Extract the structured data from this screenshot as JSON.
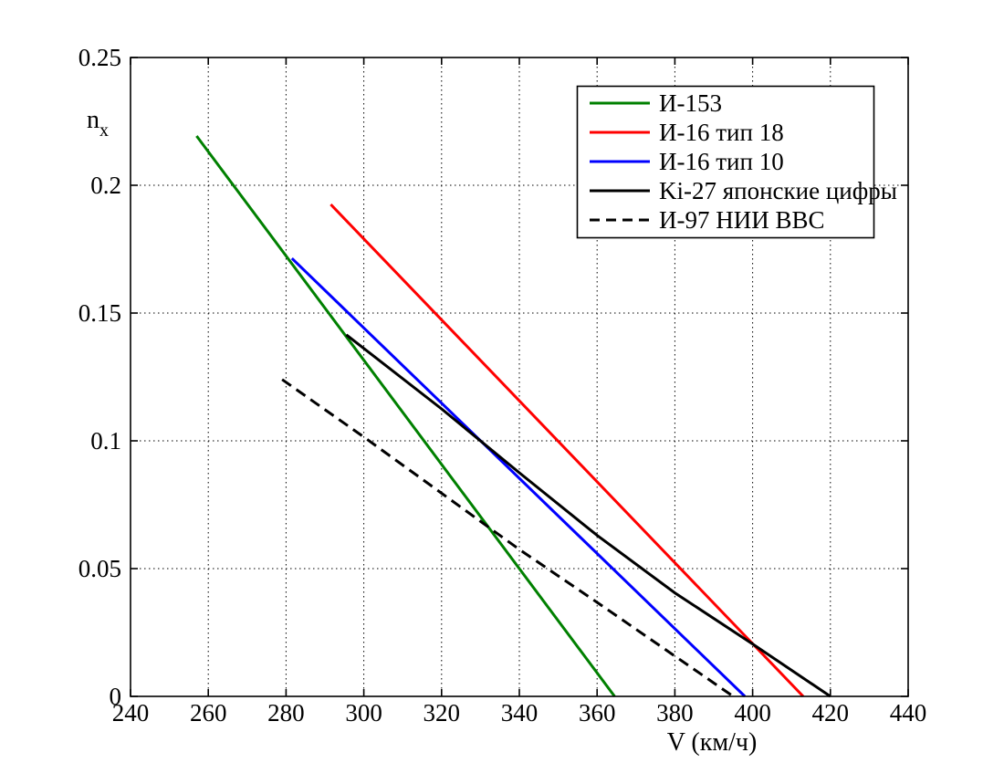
{
  "chart_data": {
    "type": "line",
    "title": "",
    "xlabel": "V (км/ч)",
    "ylabel": "n",
    "ylabel_sub": "x",
    "xlim": [
      240,
      440
    ],
    "ylim": [
      0,
      0.25
    ],
    "x_ticks": [
      240,
      260,
      280,
      300,
      320,
      340,
      360,
      380,
      400,
      420,
      440
    ],
    "x_tick_labels": [
      "240",
      "260",
      "280",
      "300",
      "320",
      "340",
      "360",
      "380",
      "400",
      "420",
      "440"
    ],
    "y_ticks": [
      0,
      0.05,
      0.1,
      0.15,
      0.2,
      0.25
    ],
    "y_tick_labels": [
      "0",
      "0.05",
      "0.1",
      "0.15",
      "0.2",
      "0.25"
    ],
    "grid": "dotted",
    "grid_color": "#000000",
    "axis_color": "#000000",
    "background_color": "#ffffff",
    "legend_position": "top-right-inside",
    "series": [
      {
        "name": "И-153",
        "color": "#008000",
        "style": "solid",
        "points": [
          [
            257,
            0.2193
          ],
          [
            364.5,
            0
          ]
        ]
      },
      {
        "name": "И-16 тип 18",
        "color": "#ff0000",
        "style": "solid",
        "points": [
          [
            291.5,
            0.1925
          ],
          [
            413,
            0
          ]
        ]
      },
      {
        "name": "И-16 тип 10",
        "color": "#0000ff",
        "style": "solid",
        "points": [
          [
            281.5,
            0.1714
          ],
          [
            398,
            0
          ]
        ]
      },
      {
        "name": "Ki-27 японские цифры",
        "color": "#000000",
        "style": "solid",
        "points": [
          [
            295.5,
            0.1415
          ],
          [
            320,
            0.1125
          ],
          [
            340,
            0.0875
          ],
          [
            360,
            0.063
          ],
          [
            380,
            0.0405
          ],
          [
            400,
            0.0205
          ],
          [
            420,
            0
          ]
        ]
      },
      {
        "name": "И-97 НИИ ВВС",
        "color": "#000000",
        "style": "dashed",
        "points": [
          [
            279,
            0.124
          ],
          [
            300,
            0.1015
          ],
          [
            340,
            0.0575
          ],
          [
            360,
            0.0368
          ],
          [
            395,
            0
          ]
        ]
      }
    ]
  }
}
